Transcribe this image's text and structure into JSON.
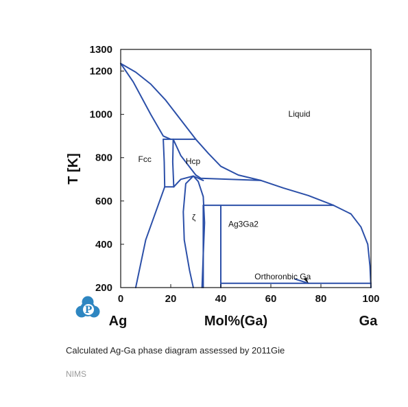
{
  "chart_data": {
    "type": "line",
    "title": "",
    "xlabel": "Mol%(Ga)",
    "ylabel": "T [K]",
    "xlim": [
      0,
      100
    ],
    "ylim": [
      200,
      1300
    ],
    "x_ticks": [
      "0",
      "20",
      "40",
      "60",
      "80",
      "100"
    ],
    "y_ticks": [
      "200",
      "400",
      "600",
      "800",
      "1000",
      "1200",
      "1300"
    ],
    "x_end_labels": {
      "left": "Ag",
      "right": "Ga"
    },
    "grid": false,
    "line_color": "#2b4fa8",
    "regions": [
      {
        "label": "Liquid",
        "x": 67,
        "y": 990
      },
      {
        "label": "Fcc",
        "x": 7,
        "y": 780
      },
      {
        "label": "Hcp",
        "x": 26,
        "y": 770
      },
      {
        "label": "ζ",
        "x": 28.5,
        "y": 510
      },
      {
        "label": "Ag3Ga2",
        "x": 43,
        "y": 480
      },
      {
        "label": "Orthoronbic Ga",
        "x": 53.5,
        "y": 238
      }
    ],
    "series": [
      {
        "values": [
          [
            0,
            1235
          ],
          [
            5,
            1150
          ],
          [
            12,
            1000
          ],
          [
            17,
            900
          ],
          [
            20,
            885
          ]
        ]
      },
      {
        "values": [
          [
            0,
            1235
          ],
          [
            6,
            1195
          ],
          [
            12,
            1140
          ],
          [
            18,
            1065
          ],
          [
            24,
            975
          ],
          [
            30,
            885
          ],
          [
            35,
            820
          ],
          [
            40,
            760
          ],
          [
            47,
            720
          ],
          [
            56,
            695
          ]
        ]
      },
      {
        "values": [
          [
            56,
            695
          ],
          [
            65,
            660
          ],
          [
            75,
            625
          ],
          [
            85,
            580
          ]
        ]
      },
      {
        "values": [
          [
            85,
            580
          ],
          [
            92,
            540
          ],
          [
            96,
            480
          ],
          [
            98.7,
            400
          ],
          [
            99.6,
            300
          ],
          [
            100,
            200
          ]
        ]
      },
      {
        "values": [
          [
            17,
            885
          ],
          [
            30,
            885
          ]
        ]
      },
      {
        "values": [
          [
            17,
            885
          ],
          [
            17.4,
            780
          ],
          [
            17.6,
            665
          ]
        ]
      },
      {
        "values": [
          [
            17.6,
            665
          ],
          [
            10,
            420
          ],
          [
            6,
            200
          ]
        ]
      },
      {
        "values": [
          [
            17.6,
            665
          ],
          [
            21.2,
            665
          ]
        ]
      },
      {
        "values": [
          [
            21,
            885
          ],
          [
            20.8,
            780
          ],
          [
            21.2,
            665
          ]
        ]
      },
      {
        "values": [
          [
            21,
            885
          ],
          [
            24,
            810
          ],
          [
            30,
            720
          ]
        ]
      },
      {
        "values": [
          [
            30,
            720
          ],
          [
            32,
            705
          ],
          [
            56,
            695
          ]
        ]
      },
      {
        "values": [
          [
            21.2,
            665
          ],
          [
            24,
            700
          ],
          [
            29,
            715
          ],
          [
            33,
            695
          ]
        ]
      },
      {
        "values": [
          [
            29,
            715
          ],
          [
            26,
            680
          ],
          [
            25,
            550
          ],
          [
            25.4,
            420
          ],
          [
            27.5,
            280
          ],
          [
            29,
            200
          ]
        ]
      },
      {
        "values": [
          [
            29,
            715
          ],
          [
            31,
            690
          ],
          [
            33,
            620
          ],
          [
            33.5,
            500
          ],
          [
            33,
            350
          ],
          [
            32.5,
            200
          ]
        ]
      },
      {
        "values": [
          [
            33,
            580
          ],
          [
            85,
            580
          ]
        ]
      },
      {
        "values": [
          [
            33,
            580
          ],
          [
            33,
            200
          ]
        ]
      },
      {
        "values": [
          [
            40,
            580
          ],
          [
            40,
            200
          ]
        ]
      },
      {
        "values": [
          [
            40,
            220
          ],
          [
            100,
            220
          ]
        ]
      },
      {
        "values": [
          [
            69.5,
            240
          ],
          [
            75,
            220
          ]
        ]
      }
    ]
  },
  "caption": {
    "prefix": "Calculated Ag-Ga phase diagram assessed by ",
    "reference": "2011Gie"
  },
  "footer": "NIMS",
  "logo": {
    "letter": "P",
    "icon": "nims-p-logo-icon",
    "color": "#2e86c1"
  }
}
